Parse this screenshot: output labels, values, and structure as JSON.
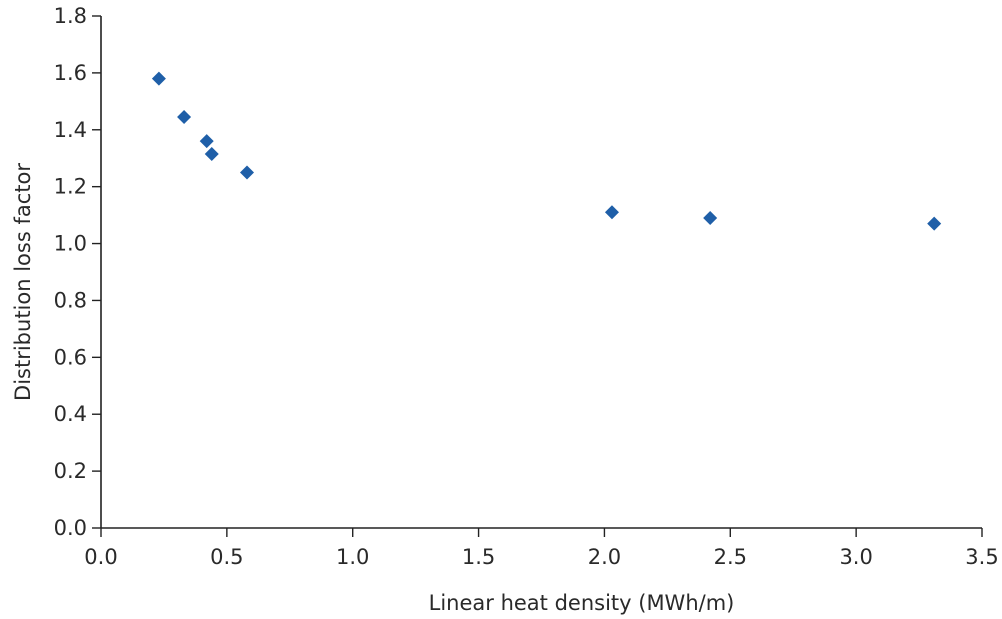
{
  "chart_data": {
    "type": "scatter",
    "title": "",
    "xlabel": "Linear heat density (MWh/m)",
    "ylabel": "Distribution loss factor",
    "xlim": [
      0.0,
      3.5
    ],
    "ylim": [
      0.0,
      1.8
    ],
    "x_ticks": [
      "0.0",
      "0.5",
      "1.0",
      "1.5",
      "2.0",
      "2.5",
      "3.0",
      "3.5"
    ],
    "y_ticks": [
      "0.0",
      "0.2",
      "0.4",
      "0.6",
      "0.8",
      "1.0",
      "1.2",
      "1.4",
      "1.6",
      "1.8"
    ],
    "grid": false,
    "legend": "none",
    "marker": "diamond",
    "marker_color": "#1f5fa8",
    "series": [
      {
        "points": [
          {
            "x": 0.23,
            "y": 1.58
          },
          {
            "x": 0.33,
            "y": 1.445
          },
          {
            "x": 0.42,
            "y": 1.36
          },
          {
            "x": 0.44,
            "y": 1.315
          },
          {
            "x": 0.58,
            "y": 1.25
          },
          {
            "x": 2.03,
            "y": 1.11
          },
          {
            "x": 2.42,
            "y": 1.09
          },
          {
            "x": 3.31,
            "y": 1.07
          }
        ]
      }
    ]
  }
}
